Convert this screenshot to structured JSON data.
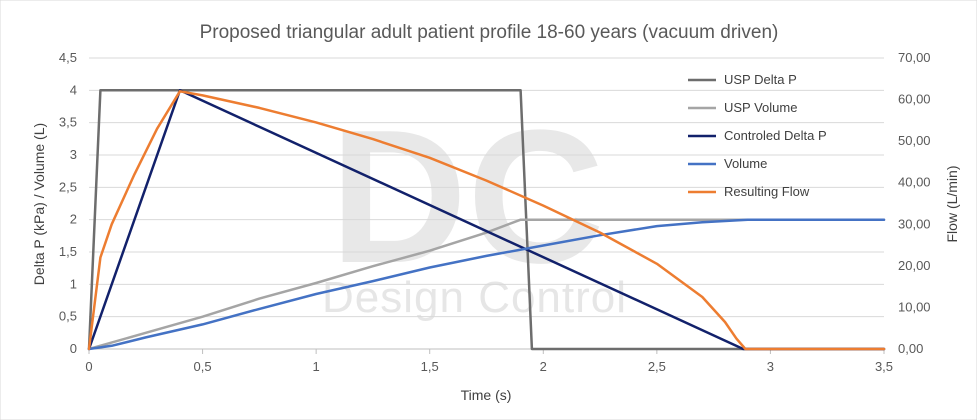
{
  "chart_data": {
    "type": "line",
    "title": "Proposed triangular adult patient profile 18-60 years (vacuum driven)",
    "xlabel": "Time (s)",
    "ylabel_left": "Delta P (kPa) / Volume (L)",
    "ylabel_right": "Flow (L/min)",
    "xlim": [
      0,
      3.5
    ],
    "ylim_left": [
      0,
      4.5
    ],
    "ylim_right": [
      0,
      70
    ],
    "x_ticks": [
      0,
      0.5,
      1,
      1.5,
      2,
      2.5,
      3,
      3.5
    ],
    "x_tick_labels": [
      "0",
      "0,5",
      "1",
      "1,5",
      "2",
      "2,5",
      "3",
      "3,5"
    ],
    "y_left_ticks": [
      0,
      0.5,
      1,
      1.5,
      2,
      2.5,
      3,
      3.5,
      4,
      4.5
    ],
    "y_left_tick_labels": [
      "0",
      "0,5",
      "1",
      "1,5",
      "2",
      "2,5",
      "3",
      "3,5",
      "4",
      "4,5"
    ],
    "y_right_ticks": [
      0,
      10,
      20,
      30,
      40,
      50,
      60,
      70
    ],
    "y_right_tick_labels": [
      "0,00",
      "10,00",
      "20,00",
      "30,00",
      "40,00",
      "50,00",
      "60,00",
      "70,00"
    ],
    "grid": true,
    "legend_position": "right",
    "series": [
      {
        "name": "USP Delta P",
        "color": "#6d6d6d",
        "axis": "left",
        "x": [
          0,
          0.05,
          1.9,
          1.95,
          3.5
        ],
        "y": [
          0,
          4,
          4,
          0,
          0
        ]
      },
      {
        "name": "USP Volume",
        "color": "#a5a5a5",
        "axis": "left",
        "x": [
          0,
          0.25,
          0.5,
          0.75,
          1.0,
          1.25,
          1.5,
          1.75,
          1.9,
          2.2,
          2.5,
          3.0,
          3.5
        ],
        "y": [
          0,
          0.25,
          0.5,
          0.78,
          1.02,
          1.28,
          1.52,
          1.8,
          2.0,
          2.0,
          2.0,
          2.0,
          2.0
        ]
      },
      {
        "name": "Controled Delta P",
        "color": "#12216b",
        "axis": "left",
        "x": [
          0,
          0.4,
          2.88,
          3.5
        ],
        "y": [
          0,
          4.0,
          0,
          0
        ]
      },
      {
        "name": "Volume",
        "color": "#4472c4",
        "axis": "left",
        "x": [
          0,
          0.1,
          0.25,
          0.5,
          0.75,
          1.0,
          1.25,
          1.5,
          1.75,
          2.0,
          2.25,
          2.5,
          2.7,
          2.9,
          3.2,
          3.5
        ],
        "y": [
          0,
          0.05,
          0.18,
          0.38,
          0.62,
          0.85,
          1.05,
          1.26,
          1.44,
          1.6,
          1.76,
          1.9,
          1.96,
          2.0,
          2.0,
          2.0
        ]
      },
      {
        "name": "Resulting Flow",
        "color": "#ed7d31",
        "axis": "right",
        "x": [
          0,
          0.05,
          0.1,
          0.2,
          0.3,
          0.4,
          0.5,
          0.75,
          1.0,
          1.25,
          1.5,
          1.75,
          2.0,
          2.25,
          2.5,
          2.7,
          2.8,
          2.85,
          2.89,
          3.0,
          3.5
        ],
        "y": [
          0,
          22,
          30,
          42,
          53,
          62,
          61,
          58,
          54.5,
          50.5,
          46,
          40.5,
          34.5,
          28,
          20.5,
          12.5,
          6.5,
          2.5,
          0,
          0,
          0
        ]
      }
    ]
  },
  "watermark": {
    "logo_letters": "DC",
    "text": "Design Control"
  }
}
